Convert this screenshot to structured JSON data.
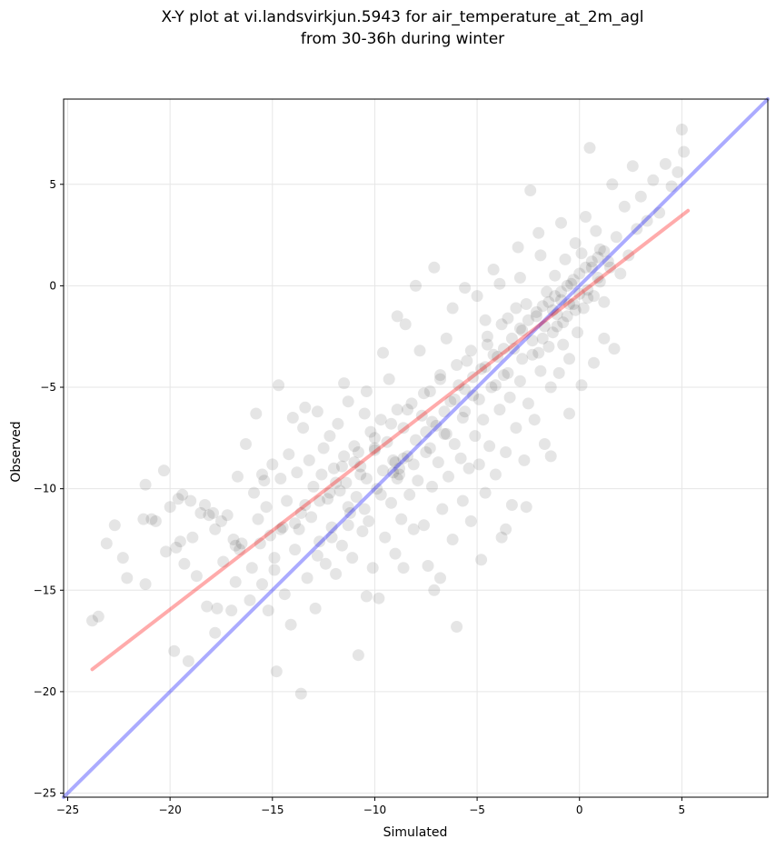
{
  "chart_data": {
    "type": "scatter",
    "title_lines": [
      "X-Y plot at vi.landsvirkjun.5943 for air_temperature_at_2m_agl",
      "from 30-36h during winter"
    ],
    "xlabel": "Simulated",
    "ylabel": "Observed",
    "xlim": [
      -25.2,
      9.2
    ],
    "ylim": [
      -25.2,
      9.2
    ],
    "xticks": [
      -25,
      -20,
      -15,
      -10,
      -5,
      0,
      5
    ],
    "yticks": [
      -25,
      -20,
      -15,
      -10,
      -5,
      0,
      5
    ],
    "grid": true,
    "point_color": "#000000",
    "point_alpha": 0.1,
    "identity_line": {
      "x": [
        -25.2,
        9.2
      ],
      "y": [
        -25.2,
        9.2
      ],
      "color": "#0000ff",
      "alpha": 0.33
    },
    "regression_line": {
      "x": [
        -23.8,
        5.3
      ],
      "y": [
        -18.9,
        3.7
      ],
      "color": "#ff0000",
      "alpha": 0.33
    },
    "points": [
      [
        -23.8,
        -16.5
      ],
      [
        -23.5,
        -16.3
      ],
      [
        -23.1,
        -12.7
      ],
      [
        -22.7,
        -11.8
      ],
      [
        -22.3,
        -13.4
      ],
      [
        -22.1,
        -14.4
      ],
      [
        -21.3,
        -11.5
      ],
      [
        -21.2,
        -9.8
      ],
      [
        -21.2,
        -14.7
      ],
      [
        -20.9,
        -11.5
      ],
      [
        -20.7,
        -11.6
      ],
      [
        -20.3,
        -9.1
      ],
      [
        -20.2,
        -13.1
      ],
      [
        -20.0,
        -10.9
      ],
      [
        -19.8,
        -18.0
      ],
      [
        -19.7,
        -12.9
      ],
      [
        -19.6,
        -10.5
      ],
      [
        -19.5,
        -12.6
      ],
      [
        -19.4,
        -10.3
      ],
      [
        -19.3,
        -13.7
      ],
      [
        -19.1,
        -18.5
      ],
      [
        -19.0,
        -10.6
      ],
      [
        -18.9,
        -12.4
      ],
      [
        -18.7,
        -14.3
      ],
      [
        -18.5,
        -11.2
      ],
      [
        -18.3,
        -10.8
      ],
      [
        -18.1,
        -11.3
      ],
      [
        -17.9,
        -11.2
      ],
      [
        -17.8,
        -17.1
      ],
      [
        -17.7,
        -15.9
      ],
      [
        -17.5,
        -11.6
      ],
      [
        -17.4,
        -13.6
      ],
      [
        -17.2,
        -11.3
      ],
      [
        -17.0,
        -16.0
      ],
      [
        -16.9,
        -12.5
      ],
      [
        -16.8,
        -14.6
      ],
      [
        -16.6,
        -13.0
      ],
      [
        -16.5,
        -12.7
      ],
      [
        -16.3,
        -7.8
      ],
      [
        -16.1,
        -15.5
      ],
      [
        -16.0,
        -13.9
      ],
      [
        -15.9,
        -10.2
      ],
      [
        -15.8,
        -6.3
      ],
      [
        -15.7,
        -11.5
      ],
      [
        -15.6,
        -12.7
      ],
      [
        -15.5,
        -14.7
      ],
      [
        -15.4,
        -9.6
      ],
      [
        -15.3,
        -10.9
      ],
      [
        -15.2,
        -16.0
      ],
      [
        -15.0,
        -8.8
      ],
      [
        -14.9,
        -13.4
      ],
      [
        -14.8,
        -19.0
      ],
      [
        -14.7,
        -4.9
      ],
      [
        -14.6,
        -9.5
      ],
      [
        -14.5,
        -11.9
      ],
      [
        -14.4,
        -15.2
      ],
      [
        -14.3,
        -10.6
      ],
      [
        -14.2,
        -8.3
      ],
      [
        -14.1,
        -16.7
      ],
      [
        -14.0,
        -6.5
      ],
      [
        -13.9,
        -13.0
      ],
      [
        -13.8,
        -9.2
      ],
      [
        -13.7,
        -12.0
      ],
      [
        -13.6,
        -20.1
      ],
      [
        -13.5,
        -7.0
      ],
      [
        -13.4,
        -10.8
      ],
      [
        -13.3,
        -14.4
      ],
      [
        -13.2,
        -8.6
      ],
      [
        -13.1,
        -11.4
      ],
      [
        -13.0,
        -9.9
      ],
      [
        -12.9,
        -15.9
      ],
      [
        -12.8,
        -6.2
      ],
      [
        -12.7,
        -12.6
      ],
      [
        -12.6,
        -9.3
      ],
      [
        -12.5,
        -8.0
      ],
      [
        -12.4,
        -13.7
      ],
      [
        -12.3,
        -10.5
      ],
      [
        -12.2,
        -7.4
      ],
      [
        -12.1,
        -11.9
      ],
      [
        -12.0,
        -9.0
      ],
      [
        -11.9,
        -14.2
      ],
      [
        -11.8,
        -6.8
      ],
      [
        -11.7,
        -10.1
      ],
      [
        -11.6,
        -12.8
      ],
      [
        -11.5,
        -8.4
      ],
      [
        -11.4,
        -9.7
      ],
      [
        -11.3,
        -5.7
      ],
      [
        -11.2,
        -11.2
      ],
      [
        -11.1,
        -13.4
      ],
      [
        -11.0,
        -7.9
      ],
      [
        -10.9,
        -10.4
      ],
      [
        -10.8,
        -18.2
      ],
      [
        -10.7,
        -8.9
      ],
      [
        -10.6,
        -12.1
      ],
      [
        -10.5,
        -6.3
      ],
      [
        -10.4,
        -9.5
      ],
      [
        -10.3,
        -11.6
      ],
      [
        -10.2,
        -7.2
      ],
      [
        -10.1,
        -13.9
      ],
      [
        -10.0,
        -8.1
      ],
      [
        -9.9,
        -10.0
      ],
      [
        -9.8,
        -15.4
      ],
      [
        -9.7,
        -6.6
      ],
      [
        -9.6,
        -9.1
      ],
      [
        -9.5,
        -12.4
      ],
      [
        -9.4,
        -7.7
      ],
      [
        -9.3,
        -4.6
      ],
      [
        -9.2,
        -10.7
      ],
      [
        -9.1,
        -8.6
      ],
      [
        -9.0,
        -13.2
      ],
      [
        -8.9,
        -6.1
      ],
      [
        -8.8,
        -9.3
      ],
      [
        -8.7,
        -11.5
      ],
      [
        -8.6,
        -7.0
      ],
      [
        -8.5,
        -1.9
      ],
      [
        -8.4,
        -8.4
      ],
      [
        -8.3,
        -10.3
      ],
      [
        -8.2,
        -5.8
      ],
      [
        -8.1,
        -12.0
      ],
      [
        -8.0,
        -7.6
      ],
      [
        -7.9,
        -9.6
      ],
      [
        -7.8,
        -3.2
      ],
      [
        -7.7,
        -6.4
      ],
      [
        -7.6,
        -11.8
      ],
      [
        -7.5,
        -8.2
      ],
      [
        -7.4,
        -13.8
      ],
      [
        -7.3,
        -5.2
      ],
      [
        -7.2,
        -9.9
      ],
      [
        -7.1,
        -15.0
      ],
      [
        -7.0,
        -6.9
      ],
      [
        -6.9,
        -8.7
      ],
      [
        -6.8,
        -4.4
      ],
      [
        -6.7,
        -11.0
      ],
      [
        -6.6,
        -7.3
      ],
      [
        -6.5,
        -2.6
      ],
      [
        -6.4,
        -9.4
      ],
      [
        -6.3,
        -5.7
      ],
      [
        -6.2,
        -12.5
      ],
      [
        -6.1,
        -7.8
      ],
      [
        -6.0,
        -16.8
      ],
      [
        -5.9,
        -4.9
      ],
      [
        -5.8,
        -8.5
      ],
      [
        -5.7,
        -10.6
      ],
      [
        -5.6,
        -6.2
      ],
      [
        -5.5,
        -3.7
      ],
      [
        -5.4,
        -9.0
      ],
      [
        -5.3,
        -11.6
      ],
      [
        -5.2,
        -5.4
      ],
      [
        -5.1,
        -7.4
      ],
      [
        -5.0,
        -0.5
      ],
      [
        -4.9,
        -8.8
      ],
      [
        -4.8,
        -4.1
      ],
      [
        -4.7,
        -6.6
      ],
      [
        -4.6,
        -10.2
      ],
      [
        -4.5,
        -2.9
      ],
      [
        -4.4,
        -7.9
      ],
      [
        -4.3,
        -5.0
      ],
      [
        -4.2,
        0.8
      ],
      [
        -4.1,
        -9.3
      ],
      [
        -4.0,
        -3.5
      ],
      [
        -3.9,
        -6.1
      ],
      [
        -3.8,
        -12.4
      ],
      [
        -3.7,
        -4.4
      ],
      [
        -3.6,
        -8.2
      ],
      [
        -3.5,
        -1.6
      ],
      [
        -3.4,
        -5.5
      ],
      [
        -3.3,
        -10.8
      ],
      [
        -3.2,
        -3.1
      ],
      [
        -3.1,
        -7.0
      ],
      [
        -3.0,
        1.9
      ],
      [
        -2.9,
        -4.7
      ],
      [
        -2.8,
        -2.2
      ],
      [
        -2.7,
        -8.6
      ],
      [
        -2.6,
        -0.9
      ],
      [
        -2.5,
        -5.8
      ],
      [
        -2.4,
        4.7
      ],
      [
        -2.3,
        -3.4
      ],
      [
        -2.2,
        -6.6
      ],
      [
        -2.1,
        -1.5
      ],
      [
        -2.0,
        2.6
      ],
      [
        -1.9,
        -4.2
      ],
      [
        -1.8,
        -2.6
      ],
      [
        -1.7,
        -7.8
      ],
      [
        -1.6,
        -0.3
      ],
      [
        -1.5,
        -3.0
      ],
      [
        -1.4,
        -5.0
      ],
      [
        -1.3,
        -1.2
      ],
      [
        -1.2,
        0.5
      ],
      [
        -1.1,
        -2.0
      ],
      [
        -1.0,
        -4.3
      ],
      [
        -0.9,
        -0.7
      ],
      [
        -0.8,
        -2.9
      ],
      [
        -0.7,
        1.3
      ],
      [
        -0.6,
        -1.5
      ],
      [
        -0.5,
        -3.6
      ],
      [
        -0.4,
        0.1
      ],
      [
        -0.3,
        -0.9
      ],
      [
        -0.2,
        2.1
      ],
      [
        -0.1,
        -2.3
      ],
      [
        0.0,
        -0.4
      ],
      [
        0.1,
        1.6
      ],
      [
        0.2,
        -1.1
      ],
      [
        0.3,
        3.4
      ],
      [
        0.4,
        -0.2
      ],
      [
        0.5,
        6.8
      ],
      [
        0.6,
        0.9
      ],
      [
        0.7,
        -0.5
      ],
      [
        0.8,
        2.7
      ],
      [
        0.9,
        0.4
      ],
      [
        1.0,
        1.8
      ],
      [
        1.2,
        -0.8
      ],
      [
        1.4,
        1.2
      ],
      [
        1.6,
        5.0
      ],
      [
        1.8,
        2.4
      ],
      [
        2.0,
        0.6
      ],
      [
        2.2,
        3.9
      ],
      [
        2.4,
        1.5
      ],
      [
        2.6,
        5.9
      ],
      [
        2.8,
        2.8
      ],
      [
        3.0,
        4.4
      ],
      [
        3.3,
        3.2
      ],
      [
        3.6,
        5.2
      ],
      [
        3.9,
        3.6
      ],
      [
        4.2,
        6.0
      ],
      [
        4.5,
        4.9
      ],
      [
        4.8,
        5.6
      ],
      [
        5.0,
        7.7
      ],
      [
        5.1,
        6.6
      ],
      [
        -18.2,
        -15.8
      ],
      [
        -16.7,
        -9.4
      ],
      [
        -15.1,
        -12.3
      ],
      [
        -13.4,
        -6.0
      ],
      [
        -12.2,
        -10.2
      ],
      [
        -11.5,
        -4.8
      ],
      [
        -10.4,
        -5.2
      ],
      [
        -9.6,
        -3.3
      ],
      [
        -8.9,
        -1.5
      ],
      [
        -8.0,
        0.0
      ],
      [
        -7.1,
        0.9
      ],
      [
        -6.2,
        -1.1
      ],
      [
        -5.6,
        -0.1
      ],
      [
        -4.6,
        -1.7
      ],
      [
        -3.9,
        0.1
      ],
      [
        -2.9,
        0.4
      ],
      [
        -1.9,
        1.5
      ],
      [
        -0.9,
        3.1
      ],
      [
        -2.6,
        -10.9
      ],
      [
        -3.6,
        -12.0
      ],
      [
        -4.8,
        -13.5
      ],
      [
        -6.8,
        -14.4
      ],
      [
        -8.6,
        -13.9
      ],
      [
        -10.4,
        -15.3
      ],
      [
        -1.4,
        -8.4
      ],
      [
        -0.5,
        -6.3
      ],
      [
        0.1,
        -4.9
      ],
      [
        0.7,
        -3.8
      ],
      [
        1.2,
        -2.6
      ],
      [
        1.7,
        -3.1
      ],
      [
        -12.8,
        -13.3
      ],
      [
        -13.9,
        -11.7
      ],
      [
        -14.9,
        -14.0
      ],
      [
        -15.5,
        -9.3
      ],
      [
        -16.8,
        -12.8
      ],
      [
        -17.8,
        -12.0
      ],
      [
        -9.1,
        -9.2
      ],
      [
        -9.0,
        -8.7
      ],
      [
        -8.8,
        -9.0
      ],
      [
        -8.6,
        -8.5
      ],
      [
        -7.5,
        -7.2
      ],
      [
        -7.2,
        -6.7
      ],
      [
        -6.6,
        -6.2
      ],
      [
        -6.1,
        -5.6
      ],
      [
        -5.6,
        -5.1
      ],
      [
        -5.2,
        -4.5
      ],
      [
        -4.6,
        -4.0
      ],
      [
        -4.2,
        -3.4
      ],
      [
        -3.7,
        -3.1
      ],
      [
        -3.3,
        -2.6
      ],
      [
        -2.9,
        -2.1
      ],
      [
        -2.5,
        -1.7
      ],
      [
        -2.1,
        -1.3
      ],
      [
        -1.8,
        -1.0
      ],
      [
        -1.5,
        -0.8
      ],
      [
        -1.2,
        -0.5
      ],
      [
        -0.9,
        -0.3
      ],
      [
        -0.6,
        0.0
      ],
      [
        -0.3,
        0.3
      ],
      [
        0.0,
        0.6
      ],
      [
        0.3,
        0.9
      ],
      [
        0.6,
        1.2
      ],
      [
        0.9,
        1.4
      ],
      [
        1.2,
        1.7
      ],
      [
        -11.9,
        -9.7
      ],
      [
        -11.0,
        -8.7
      ],
      [
        -10.0,
        -8.0
      ],
      [
        -10.7,
        -9.3
      ],
      [
        -12.7,
        -10.6
      ],
      [
        -13.6,
        -11.2
      ],
      [
        -14.6,
        -12.0
      ],
      [
        -11.3,
        -10.9
      ],
      [
        -2.3,
        -2.7
      ],
      [
        -1.7,
        -2.0
      ],
      [
        -1.1,
        -1.4
      ],
      [
        -0.5,
        -0.9
      ],
      [
        -2.0,
        -3.3
      ],
      [
        -2.8,
        -3.6
      ],
      [
        -3.5,
        -4.3
      ],
      [
        -4.1,
        -4.9
      ],
      [
        -4.9,
        -5.6
      ],
      [
        -5.7,
        -6.5
      ],
      [
        -6.5,
        -7.3
      ],
      [
        -7.3,
        -8.0
      ],
      [
        -8.1,
        -8.8
      ],
      [
        -8.9,
        -9.5
      ],
      [
        -9.7,
        -10.3
      ],
      [
        -10.5,
        -11.0
      ],
      [
        -11.3,
        -11.8
      ],
      [
        -12.1,
        -12.4
      ],
      [
        -1.3,
        -2.3
      ],
      [
        -0.8,
        -1.8
      ],
      [
        -0.2,
        -1.2
      ],
      [
        0.4,
        -0.6
      ],
      [
        1.0,
        0.2
      ],
      [
        1.5,
        0.9
      ],
      [
        -3.1,
        -1.1
      ],
      [
        -3.8,
        -1.9
      ],
      [
        -4.5,
        -2.5
      ],
      [
        -5.3,
        -3.2
      ],
      [
        -6.0,
        -3.9
      ],
      [
        -6.8,
        -4.6
      ],
      [
        -7.6,
        -5.3
      ],
      [
        -8.4,
        -6.1
      ],
      [
        -9.2,
        -6.8
      ],
      [
        -10.0,
        -7.5
      ],
      [
        -10.8,
        -8.2
      ],
      [
        -11.6,
        -8.9
      ]
    ]
  }
}
